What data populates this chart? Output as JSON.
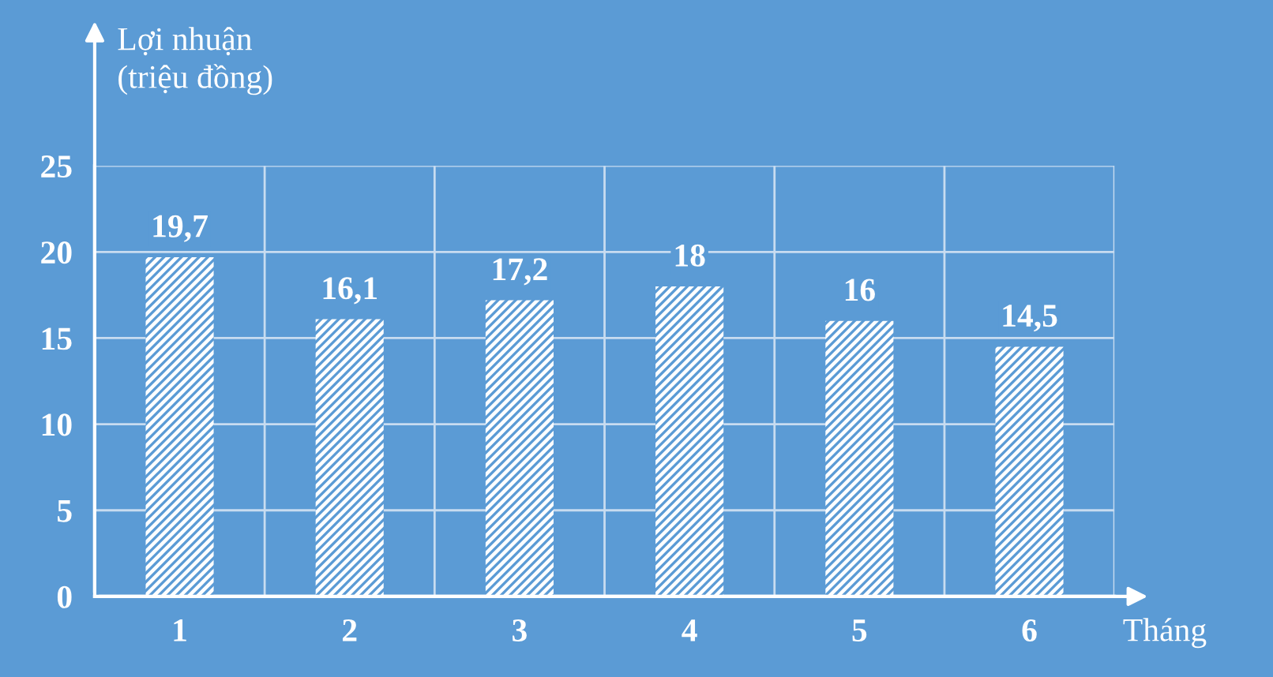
{
  "chart_data": {
    "type": "bar",
    "ylabel": "Lợi nhuận\n(triệu đồng)",
    "xlabel": "Tháng",
    "categories": [
      "1",
      "2",
      "3",
      "4",
      "5",
      "6"
    ],
    "values": [
      19.7,
      16.1,
      17.2,
      18,
      16,
      14.5
    ],
    "color": "#ffffff",
    "value_labels": [
      "19,7",
      "16,1",
      "17,2",
      "18",
      "16",
      "14,5"
    ],
    "ylim": [
      0,
      25
    ],
    "yticks": [
      0,
      5,
      10,
      15,
      20,
      25
    ],
    "grid": true
  }
}
